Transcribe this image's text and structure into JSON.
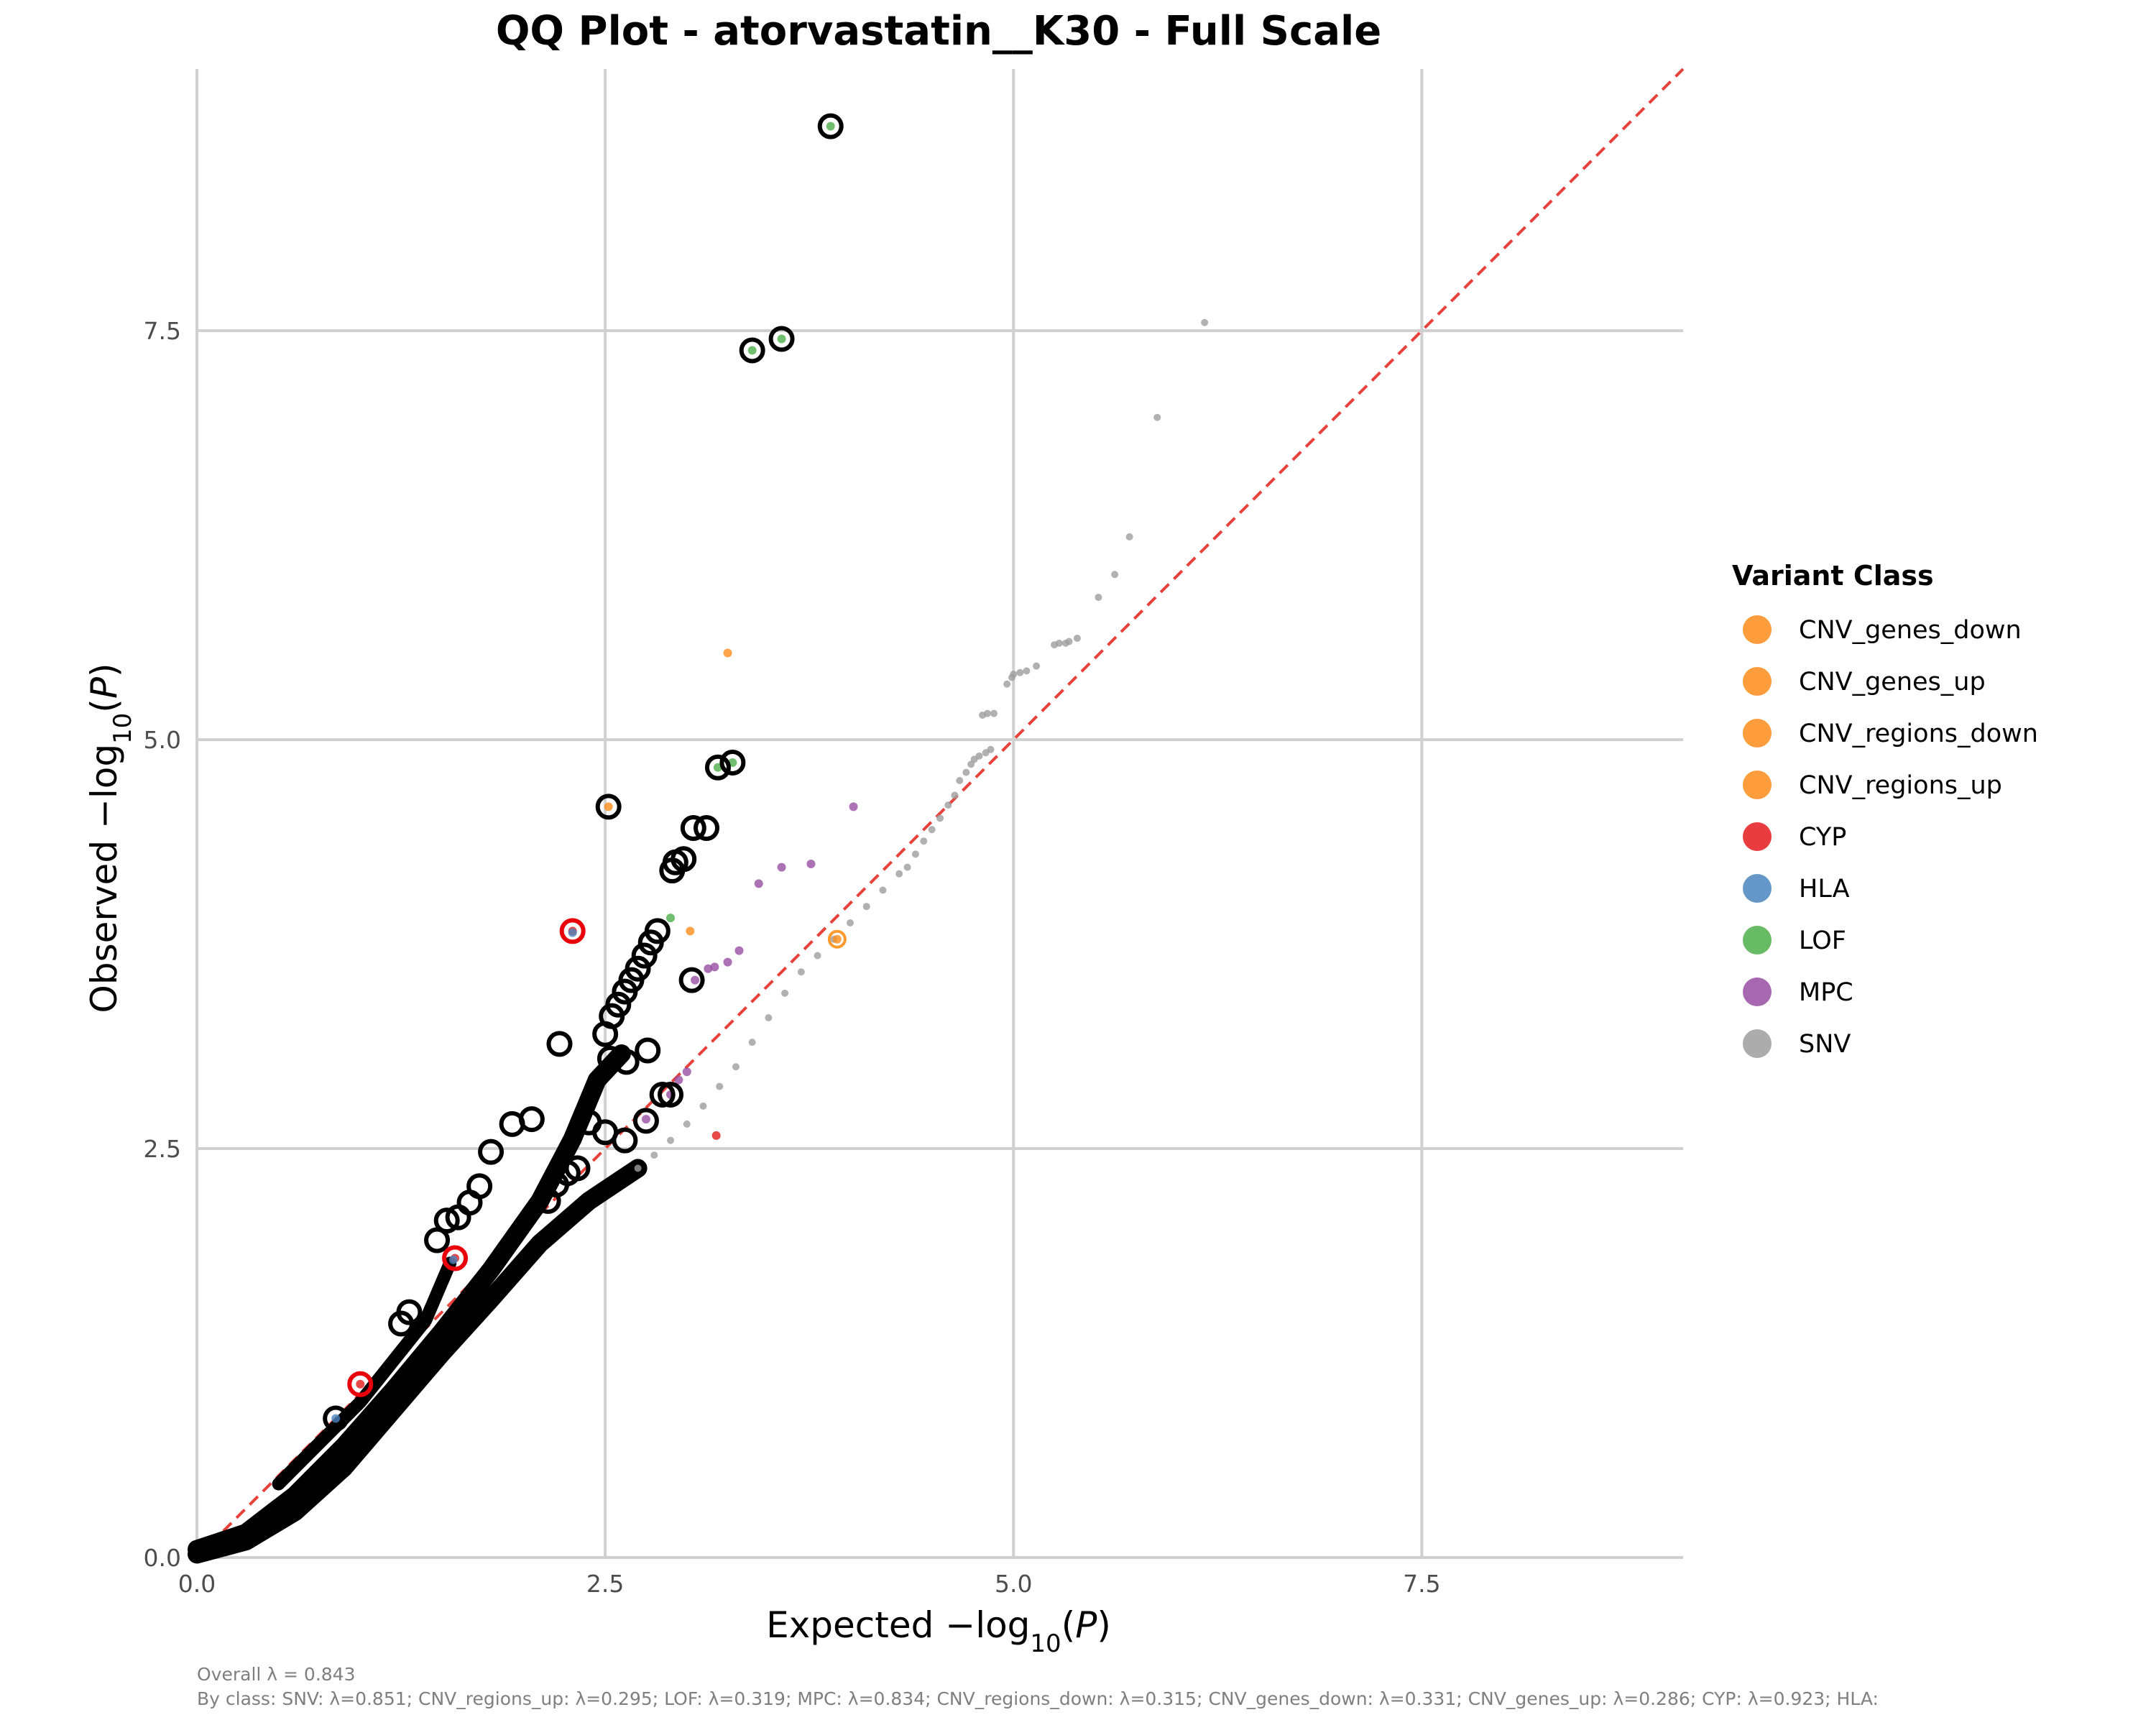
{
  "chart_data": {
    "type": "scatter",
    "title": "QQ Plot - atorvastatin__K30 - Full Scale",
    "xlabel": {
      "prefix": "Expected −log",
      "sub": "10",
      "suffix": "(",
      "var": "P",
      "close": ")"
    },
    "ylabel": {
      "prefix": "Observed −log",
      "sub": "10",
      "suffix": "(",
      "var": "P",
      "close": ")"
    },
    "xlim": [
      0,
      9.1
    ],
    "ylim": [
      0,
      9.1
    ],
    "x_ticks": [
      0,
      2.5,
      5,
      7.5
    ],
    "y_ticks": [
      0,
      2.5,
      5,
      7.5
    ],
    "x_tick_labels": [
      "0.0",
      "2.5",
      "5.0",
      "7.5"
    ],
    "y_tick_labels": [
      "0.0",
      "2.5",
      "5.0",
      "7.5"
    ],
    "grid": true,
    "reference_line": {
      "slope": 1,
      "intercept": 0,
      "style": "dashed",
      "color": "#e8403a"
    },
    "legend": {
      "title": "Variant Class",
      "placement": "right",
      "entries": [
        {
          "name": "CNV_genes_down",
          "color": "#ff8c1a"
        },
        {
          "name": "CNV_genes_up",
          "color": "#ff8c1a"
        },
        {
          "name": "CNV_regions_down",
          "color": "#ff8c1a"
        },
        {
          "name": "CNV_regions_up",
          "color": "#ff8c1a"
        },
        {
          "name": "CYP",
          "color": "#e41a1c"
        },
        {
          "name": "HLA",
          "color": "#4a86c0"
        },
        {
          "name": "LOF",
          "color": "#4daf4a"
        },
        {
          "name": "MPC",
          "color": "#984ea3"
        },
        {
          "name": "SNV",
          "color": "#9e9e9e"
        }
      ]
    },
    "series": [
      {
        "name": "SNV",
        "color": "#9e9e9e",
        "points": [
          [
            6.17,
            7.55
          ],
          [
            5.88,
            6.97
          ],
          [
            5.71,
            6.24
          ],
          [
            5.62,
            6.01
          ],
          [
            5.52,
            5.87
          ],
          [
            5.39,
            5.62
          ],
          [
            5.34,
            5.6
          ],
          [
            5.32,
            5.59
          ],
          [
            5.28,
            5.59
          ],
          [
            5.25,
            5.58
          ],
          [
            5.14,
            5.45
          ],
          [
            5.08,
            5.42
          ],
          [
            5.04,
            5.41
          ],
          [
            5.0,
            5.4
          ],
          [
            4.99,
            5.38
          ],
          [
            4.96,
            5.34
          ],
          [
            4.88,
            5.16
          ],
          [
            4.84,
            5.16
          ],
          [
            4.81,
            5.15
          ],
          [
            4.86,
            4.94
          ],
          [
            4.83,
            4.92
          ],
          [
            4.79,
            4.9
          ],
          [
            4.76,
            4.88
          ],
          [
            4.74,
            4.85
          ],
          [
            4.71,
            4.8
          ],
          [
            4.67,
            4.75
          ],
          [
            4.64,
            4.66
          ],
          [
            4.6,
            4.6
          ],
          [
            4.55,
            4.52
          ],
          [
            4.5,
            4.45
          ],
          [
            4.45,
            4.38
          ],
          [
            4.4,
            4.3
          ],
          [
            4.35,
            4.22
          ],
          [
            4.3,
            4.18
          ],
          [
            4.2,
            4.08
          ],
          [
            4.1,
            3.98
          ],
          [
            4.0,
            3.88
          ],
          [
            3.9,
            3.78
          ],
          [
            3.8,
            3.68
          ],
          [
            3.7,
            3.58
          ],
          [
            3.6,
            3.45
          ],
          [
            3.5,
            3.3
          ],
          [
            3.4,
            3.15
          ],
          [
            3.3,
            3.0
          ],
          [
            3.2,
            2.88
          ],
          [
            3.1,
            2.76
          ],
          [
            3.0,
            2.65
          ],
          [
            2.9,
            2.55
          ],
          [
            2.8,
            2.46
          ],
          [
            2.7,
            2.38
          ]
        ]
      },
      {
        "name": "CNV_regions_up",
        "color": "#ff8c1a",
        "points": [
          [
            3.25,
            5.53
          ],
          [
            3.02,
            3.83
          ],
          [
            2.52,
            4.59
          ],
          [
            3.92,
            3.78
          ]
        ]
      },
      {
        "name": "MPC",
        "color": "#984ea3",
        "points": [
          [
            4.02,
            4.59
          ],
          [
            3.76,
            4.24
          ],
          [
            3.58,
            4.22
          ],
          [
            3.44,
            4.12
          ],
          [
            3.32,
            3.71
          ],
          [
            3.25,
            3.64
          ],
          [
            3.17,
            3.61
          ],
          [
            3.13,
            3.6
          ],
          [
            3.05,
            3.53
          ],
          [
            3.0,
            2.97
          ],
          [
            2.95,
            2.92
          ],
          [
            2.9,
            2.83
          ],
          [
            2.75,
            2.68
          ]
        ]
      },
      {
        "name": "LOF",
        "color": "#4daf4a",
        "points": [
          [
            3.88,
            8.75
          ],
          [
            3.58,
            7.45
          ],
          [
            3.4,
            7.38
          ],
          [
            3.28,
            4.86
          ],
          [
            3.19,
            4.83
          ],
          [
            2.9,
            3.91
          ]
        ]
      },
      {
        "name": "CYP",
        "color": "#e41a1c",
        "points": [
          [
            3.18,
            2.58
          ],
          [
            2.3,
            3.83
          ],
          [
            1.58,
            1.83
          ],
          [
            1.0,
            1.06
          ]
        ]
      },
      {
        "name": "HLA",
        "color": "#4a86c0",
        "points": [
          [
            2.3,
            3.82
          ],
          [
            1.57,
            1.82
          ],
          [
            0.85,
            0.85
          ]
        ]
      }
    ],
    "highlighted_points": [
      [
        3.88,
        8.75
      ],
      [
        3.58,
        7.45
      ],
      [
        3.4,
        7.38
      ],
      [
        3.28,
        4.86
      ],
      [
        3.19,
        4.83
      ],
      [
        2.52,
        4.59
      ],
      [
        3.12,
        4.46
      ],
      [
        3.04,
        4.46
      ],
      [
        2.98,
        4.27
      ],
      [
        2.93,
        4.25
      ],
      [
        2.91,
        4.2
      ],
      [
        2.82,
        3.83
      ],
      [
        2.78,
        3.76
      ],
      [
        2.74,
        3.68
      ],
      [
        2.7,
        3.6
      ],
      [
        2.66,
        3.53
      ],
      [
        2.62,
        3.46
      ],
      [
        2.58,
        3.38
      ],
      [
        2.54,
        3.31
      ],
      [
        2.5,
        3.2
      ],
      [
        3.03,
        3.53
      ],
      [
        2.22,
        3.14
      ],
      [
        2.76,
        3.1
      ],
      [
        2.63,
        3.03
      ],
      [
        2.53,
        3.05
      ],
      [
        2.85,
        2.83
      ],
      [
        2.9,
        2.83
      ],
      [
        2.75,
        2.67
      ],
      [
        2.62,
        2.55
      ],
      [
        2.5,
        2.6
      ],
      [
        2.4,
        2.66
      ],
      [
        2.33,
        2.38
      ],
      [
        2.27,
        2.35
      ],
      [
        2.2,
        2.28
      ],
      [
        2.15,
        2.18
      ],
      [
        2.05,
        2.68
      ],
      [
        1.93,
        2.65
      ],
      [
        1.8,
        2.48
      ],
      [
        1.73,
        2.27
      ],
      [
        1.67,
        2.17
      ],
      [
        1.6,
        2.08
      ],
      [
        1.53,
        2.06
      ],
      [
        1.47,
        1.94
      ],
      [
        1.3,
        1.5
      ],
      [
        1.25,
        1.43
      ],
      [
        0.85,
        0.85
      ]
    ],
    "caption_lines": [
      "Overall λ = 0.843",
      "By class: SNV: λ=0.851; CNV_regions_up: λ=0.295; LOF: λ=0.319; MPC: λ=0.834; CNV_regions_down: λ=0.315; CNV_genes_down: λ=0.331; CNV_genes_up: λ=0.286; CYP: λ=0.923; HLA:"
    ]
  }
}
